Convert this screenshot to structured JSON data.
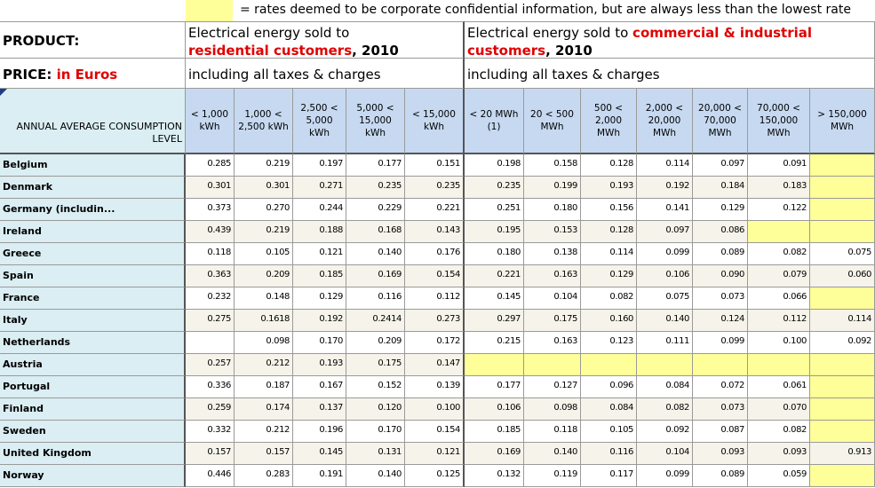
{
  "legend": {
    "text": "= rates deemed to be corporate confidential information, but are always less than the lowest rate"
  },
  "product": {
    "label": "PRODUCT:",
    "residential": {
      "prefix": "Electrical energy sold to",
      "highlight": "residential customers",
      "suffix": ", 2010"
    },
    "commercial": {
      "prefix": "Electrical energy sold to",
      "highlight": "commercial & industrial customers",
      "suffix": ", 2010"
    }
  },
  "price": {
    "label": "PRICE:",
    "unit": "in Euros",
    "residential_note": "including all taxes & charges",
    "commercial_note": "including all taxes & charges"
  },
  "table": {
    "corner": "ANNUAL AVERAGE CONSUMPTION LEVEL",
    "columns": [
      "< 1,000 kWh",
      "1,000 < 2,500 kWh",
      "2,500 < 5,000 kWh",
      "5,000 < 15,000 kWh",
      "< 15,000 kWh",
      "< 20 MWh (1)",
      "20 < 500 MWh",
      "500 < 2,000 MWh",
      "2,000 < 20,000 MWh",
      "20,000 < 70,000 MWh",
      "70,000 < 150,000 MWh",
      "> 150,000 MWh"
    ],
    "rows": [
      {
        "label": "Belgium",
        "cells": [
          "0.285",
          "0.219",
          "0.197",
          "0.177",
          "0.151",
          "0.198",
          "0.158",
          "0.128",
          "0.114",
          "0.097",
          "0.091",
          null
        ],
        "confidential": [
          11
        ]
      },
      {
        "label": "Denmark",
        "cells": [
          "0.301",
          "0.301",
          "0.271",
          "0.235",
          "0.235",
          "0.235",
          "0.199",
          "0.193",
          "0.192",
          "0.184",
          "0.183",
          null
        ],
        "confidential": [
          11
        ]
      },
      {
        "label": "Germany (includin...",
        "cells": [
          "0.373",
          "0.270",
          "0.244",
          "0.229",
          "0.221",
          "0.251",
          "0.180",
          "0.156",
          "0.141",
          "0.129",
          "0.122",
          null
        ],
        "confidential": [
          11
        ]
      },
      {
        "label": "Ireland",
        "cells": [
          "0.439",
          "0.219",
          "0.188",
          "0.168",
          "0.143",
          "0.195",
          "0.153",
          "0.128",
          "0.097",
          "0.086",
          null,
          null
        ],
        "confidential": [
          10,
          11
        ]
      },
      {
        "label": "Greece",
        "cells": [
          "0.118",
          "0.105",
          "0.121",
          "0.140",
          "0.176",
          "0.180",
          "0.138",
          "0.114",
          "0.099",
          "0.089",
          "0.082",
          "0.075"
        ],
        "confidential": []
      },
      {
        "label": "Spain",
        "cells": [
          "0.363",
          "0.209",
          "0.185",
          "0.169",
          "0.154",
          "0.221",
          "0.163",
          "0.129",
          "0.106",
          "0.090",
          "0.079",
          "0.060"
        ],
        "confidential": []
      },
      {
        "label": "France",
        "cells": [
          "0.232",
          "0.148",
          "0.129",
          "0.116",
          "0.112",
          "0.145",
          "0.104",
          "0.082",
          "0.075",
          "0.073",
          "0.066",
          null
        ],
        "confidential": [
          11
        ]
      },
      {
        "label": "Italy",
        "cells": [
          "0.275",
          "0.1618",
          "0.192",
          "0.2414",
          "0.273",
          "0.297",
          "0.175",
          "0.160",
          "0.140",
          "0.124",
          "0.112",
          "0.114"
        ],
        "confidential": []
      },
      {
        "label": "Netherlands",
        "cells": [
          null,
          "0.098",
          "0.170",
          "0.209",
          "0.172",
          "0.215",
          "0.163",
          "0.123",
          "0.111",
          "0.099",
          "0.100",
          "0.092"
        ],
        "confidential": []
      },
      {
        "label": "Austria",
        "cells": [
          "0.257",
          "0.212",
          "0.193",
          "0.175",
          "0.147",
          null,
          null,
          null,
          null,
          null,
          null,
          null
        ],
        "confidential": [
          5,
          6,
          7,
          8,
          9,
          10,
          11
        ]
      },
      {
        "label": "Portugal",
        "cells": [
          "0.336",
          "0.187",
          "0.167",
          "0.152",
          "0.139",
          "0.177",
          "0.127",
          "0.096",
          "0.084",
          "0.072",
          "0.061",
          null
        ],
        "confidential": [
          11
        ]
      },
      {
        "label": "Finland",
        "cells": [
          "0.259",
          "0.174",
          "0.137",
          "0.120",
          "0.100",
          "0.106",
          "0.098",
          "0.084",
          "0.082",
          "0.073",
          "0.070",
          null
        ],
        "confidential": [
          11
        ]
      },
      {
        "label": "Sweden",
        "cells": [
          "0.332",
          "0.212",
          "0.196",
          "0.170",
          "0.154",
          "0.185",
          "0.118",
          "0.105",
          "0.092",
          "0.087",
          "0.082",
          null
        ],
        "confidential": [
          11
        ]
      },
      {
        "label": "United Kingdom",
        "cells": [
          "0.157",
          "0.157",
          "0.145",
          "0.131",
          "0.121",
          "0.169",
          "0.140",
          "0.116",
          "0.104",
          "0.093",
          "0.093",
          "0.913"
        ],
        "confidential": []
      },
      {
        "label": "Norway",
        "cells": [
          "0.446",
          "0.283",
          "0.191",
          "0.140",
          "0.125",
          "0.132",
          "0.119",
          "0.117",
          "0.099",
          "0.089",
          "0.059",
          null
        ],
        "confidential": [
          11
        ]
      }
    ]
  }
}
